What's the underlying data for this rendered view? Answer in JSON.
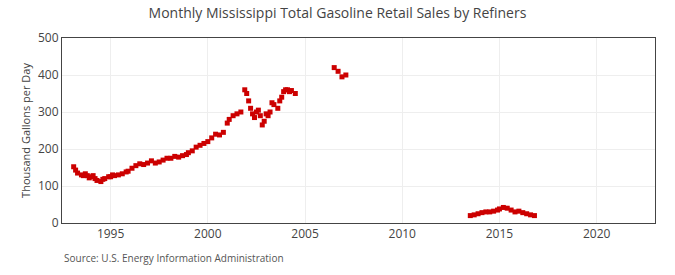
{
  "chart_data": {
    "type": "scatter",
    "title": "Monthly Mississippi Total Gasoline Retail Sales by Refiners",
    "ylabel": "Thousand Gallons per Day",
    "annotations": [
      "Source: U.S. Energy Information Administration"
    ],
    "color": "#cc0000",
    "marker": "square",
    "grid": true,
    "xlim": [
      1992.5,
      2023
    ],
    "ylim": [
      0,
      500
    ],
    "xticks": [
      1995,
      2000,
      2005,
      2010,
      2015,
      2020
    ],
    "yticks": [
      0,
      100,
      200,
      300,
      400,
      500
    ],
    "x": [
      1993.1,
      1993.2,
      1993.3,
      1993.5,
      1993.6,
      1993.7,
      1993.8,
      1993.9,
      1994.0,
      1994.1,
      1994.2,
      1994.3,
      1994.5,
      1994.6,
      1994.7,
      1994.9,
      1995.0,
      1995.1,
      1995.2,
      1995.4,
      1995.6,
      1995.8,
      1995.9,
      1996.1,
      1996.3,
      1996.5,
      1996.7,
      1996.9,
      1997.1,
      1997.3,
      1997.5,
      1997.7,
      1997.9,
      1998.1,
      1998.3,
      1998.5,
      1998.7,
      1998.9,
      1999.0,
      1999.2,
      1999.4,
      1999.6,
      1999.8,
      2000.0,
      2000.2,
      2000.4,
      2000.6,
      2000.8,
      2001.0,
      2001.1,
      2001.3,
      2001.5,
      2001.7,
      2001.9,
      2002.0,
      2002.1,
      2002.2,
      2002.3,
      2002.4,
      2002.5,
      2002.6,
      2002.7,
      2002.8,
      2002.9,
      2003.0,
      2003.1,
      2003.2,
      2003.3,
      2003.4,
      2003.6,
      2003.7,
      2003.8,
      2003.9,
      2004.0,
      2004.1,
      2004.2,
      2004.3,
      2004.5,
      2006.5,
      2006.7,
      2006.9,
      2007.1,
      2013.5,
      2013.7,
      2013.9,
      2014.1,
      2014.3,
      2014.5,
      2014.7,
      2014.9,
      2015.0,
      2015.2,
      2015.4,
      2015.6,
      2015.8,
      2016.0,
      2016.2,
      2016.4,
      2016.6,
      2016.8
    ],
    "values": [
      152,
      143,
      135,
      130,
      128,
      133,
      128,
      122,
      125,
      128,
      120,
      115,
      112,
      118,
      120,
      125,
      125,
      130,
      128,
      130,
      133,
      138,
      140,
      148,
      155,
      160,
      158,
      162,
      168,
      162,
      165,
      170,
      175,
      175,
      180,
      178,
      182,
      185,
      190,
      195,
      205,
      210,
      215,
      220,
      230,
      240,
      238,
      245,
      270,
      280,
      290,
      295,
      300,
      360,
      350,
      330,
      310,
      295,
      285,
      300,
      305,
      290,
      265,
      275,
      295,
      290,
      300,
      325,
      320,
      310,
      330,
      340,
      355,
      360,
      360,
      355,
      358,
      350,
      420,
      410,
      395,
      400,
      20,
      22,
      25,
      28,
      30,
      30,
      32,
      35,
      38,
      42,
      40,
      35,
      30,
      32,
      28,
      25,
      22,
      20
    ]
  }
}
